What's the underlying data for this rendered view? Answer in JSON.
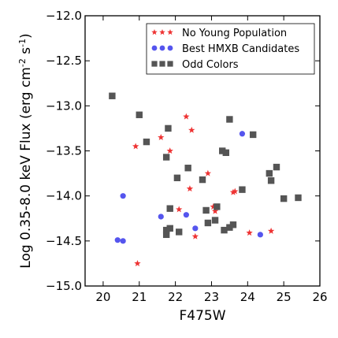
{
  "chart_data": {
    "type": "scatter",
    "xlabel": "F475W",
    "ylabel_parts": [
      "Log 0.35-8.0 keV Flux (erg cm",
      "-2",
      " s",
      "-1",
      ")"
    ],
    "xlim": [
      19.5,
      26
    ],
    "ylim": [
      -15.0,
      -12.0
    ],
    "xticks": [
      20,
      21,
      22,
      23,
      24,
      25,
      26
    ],
    "yticks": [
      -15.0,
      -14.5,
      -14.0,
      -13.5,
      -13.0,
      -12.5,
      -12.0
    ],
    "xtick_labels": [
      "20",
      "21",
      "22",
      "23",
      "24",
      "25",
      "26"
    ],
    "ytick_labels": [
      "−15.0",
      "−14.5",
      "−14.0",
      "−13.5",
      "−13.0",
      "−12.5",
      "−12.0"
    ],
    "legend_position": "top-right",
    "series": [
      {
        "name": "No Young Population",
        "marker": "star",
        "color": "#ee3333",
        "points": [
          [
            20.9,
            -13.45
          ],
          [
            21.6,
            -13.35
          ],
          [
            21.85,
            -13.5
          ],
          [
            22.3,
            -13.12
          ],
          [
            22.45,
            -13.27
          ],
          [
            22.4,
            -13.92
          ],
          [
            22.9,
            -13.75
          ],
          [
            22.1,
            -14.15
          ],
          [
            23.05,
            -14.12
          ],
          [
            23.1,
            -14.17
          ],
          [
            23.6,
            -13.96
          ],
          [
            23.65,
            -13.95
          ],
          [
            24.05,
            -14.41
          ],
          [
            24.65,
            -14.39
          ],
          [
            22.55,
            -14.45
          ],
          [
            20.95,
            -14.75
          ]
        ]
      },
      {
        "name": "Best HMXB Candidates",
        "marker": "circle",
        "color": "#5555ee",
        "points": [
          [
            20.55,
            -14.0
          ],
          [
            20.4,
            -14.49
          ],
          [
            20.55,
            -14.5
          ],
          [
            21.6,
            -14.23
          ],
          [
            22.3,
            -14.21
          ],
          [
            22.55,
            -14.36
          ],
          [
            23.85,
            -13.31
          ],
          [
            24.35,
            -14.43
          ]
        ]
      },
      {
        "name": "Odd Colors",
        "marker": "square",
        "color": "#555555",
        "points": [
          [
            20.25,
            -12.89
          ],
          [
            21.0,
            -13.1
          ],
          [
            21.2,
            -13.4
          ],
          [
            21.8,
            -13.25
          ],
          [
            21.75,
            -13.57
          ],
          [
            22.05,
            -13.8
          ],
          [
            22.35,
            -13.69
          ],
          [
            22.75,
            -13.82
          ],
          [
            23.3,
            -13.5
          ],
          [
            23.4,
            -13.52
          ],
          [
            23.5,
            -13.15
          ],
          [
            24.15,
            -13.32
          ],
          [
            23.85,
            -13.93
          ],
          [
            24.6,
            -13.75
          ],
          [
            24.8,
            -13.68
          ],
          [
            24.65,
            -13.83
          ],
          [
            25.0,
            -14.03
          ],
          [
            25.4,
            -14.02
          ],
          [
            22.85,
            -14.16
          ],
          [
            23.15,
            -14.12
          ],
          [
            23.1,
            -14.27
          ],
          [
            23.35,
            -14.38
          ],
          [
            23.5,
            -14.35
          ],
          [
            23.6,
            -14.32
          ],
          [
            22.9,
            -14.3
          ],
          [
            21.85,
            -14.14
          ],
          [
            21.75,
            -14.38
          ],
          [
            21.75,
            -14.43
          ],
          [
            21.85,
            -14.36
          ],
          [
            22.1,
            -14.4
          ]
        ]
      }
    ]
  }
}
